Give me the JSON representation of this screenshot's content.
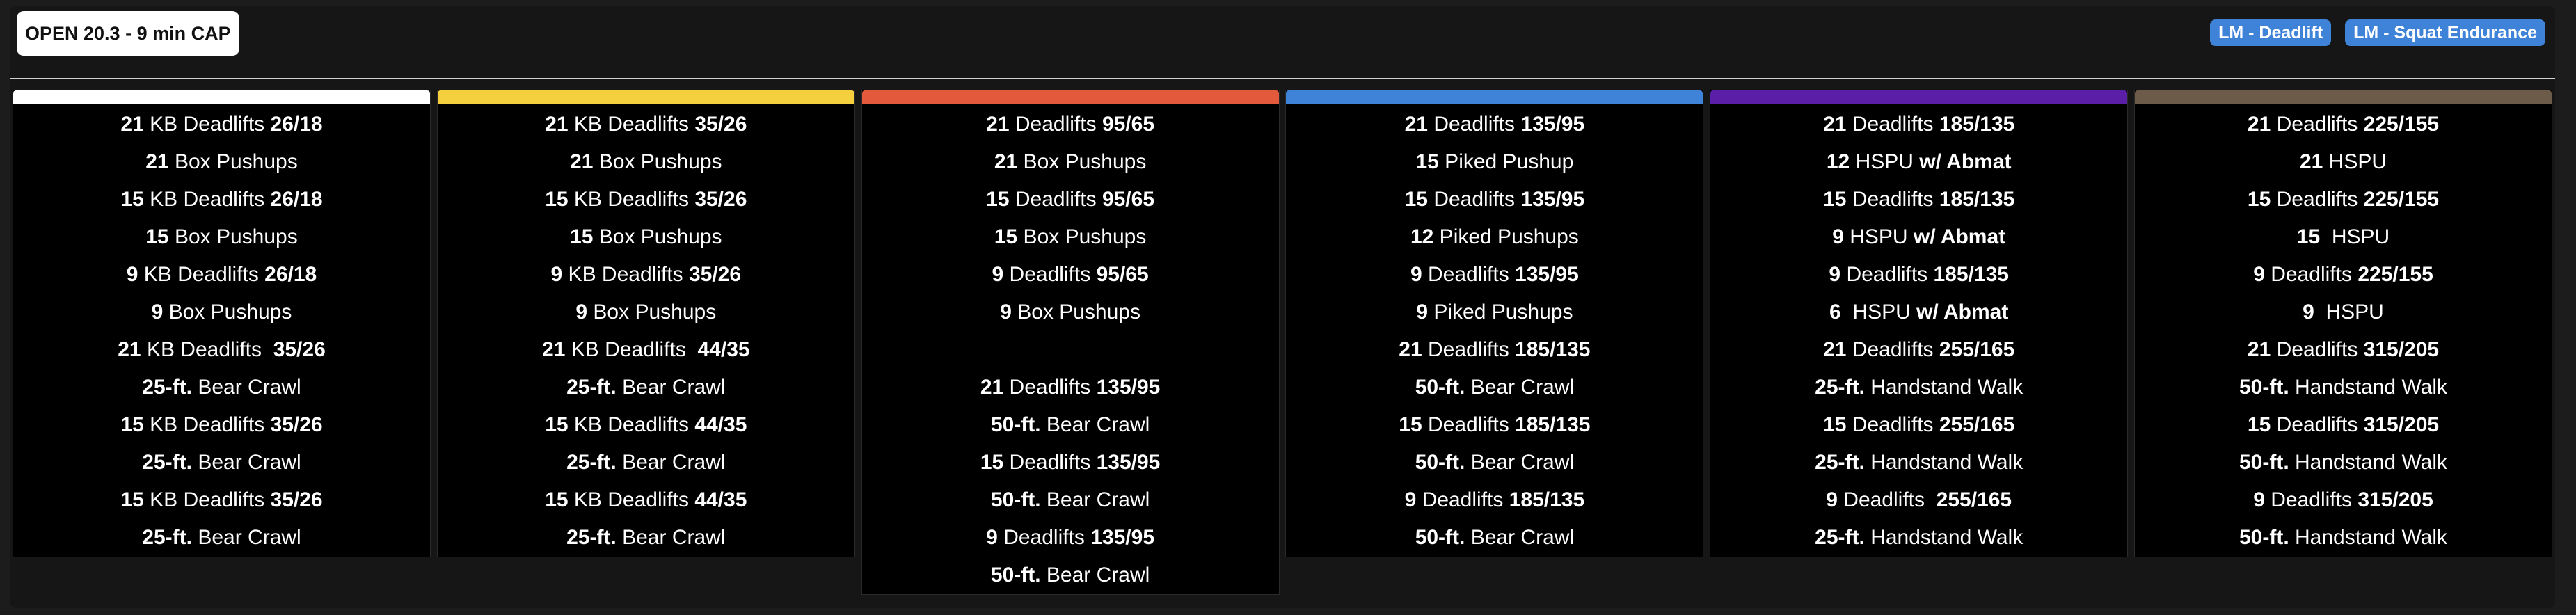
{
  "header": {
    "title": "OPEN 20.3 - 9 min CAP",
    "badges": [
      "LM - Deadlift",
      "LM - Squat Endurance"
    ]
  },
  "colors": {
    "page_bg": "#1c1c1c",
    "panel_bg": "#161616",
    "column_bg": "#000000",
    "badge_bg": "#3f83d9",
    "level_colors": [
      "#ffffff",
      "#f4d03f",
      "#e2593b",
      "#3f83d9",
      "#5a1fa6",
      "#6d5b49"
    ]
  },
  "columns": [
    {
      "color": "#ffffff",
      "rows": [
        {
          "num": "21",
          "text": " KB Deadlifts ",
          "weight": "26/18"
        },
        {
          "num": "21",
          "text": " Box Pushups",
          "weight": ""
        },
        {
          "num": "15",
          "text": " KB Deadlifts ",
          "weight": "26/18"
        },
        {
          "num": "15",
          "text": " Box Pushups",
          "weight": ""
        },
        {
          "num": "9",
          "text": " KB Deadlifts ",
          "weight": "26/18"
        },
        {
          "num": "9",
          "text": " Box Pushups",
          "weight": ""
        },
        {
          "num": "21",
          "text": " KB Deadlifts  ",
          "weight": "35/26"
        },
        {
          "num": "25-ft.",
          "text": " Bear Crawl",
          "weight": ""
        },
        {
          "num": "15",
          "text": " KB Deadlifts ",
          "weight": "35/26"
        },
        {
          "num": "25-ft.",
          "text": " Bear Crawl",
          "weight": ""
        },
        {
          "num": "15",
          "text": " KB Deadlifts ",
          "weight": "35/26"
        },
        {
          "num": "25-ft.",
          "text": " Bear Crawl",
          "weight": ""
        }
      ]
    },
    {
      "color": "#f4d03f",
      "rows": [
        {
          "num": "21",
          "text": " KB Deadlifts ",
          "weight": "35/26"
        },
        {
          "num": "21",
          "text": " Box Pushups",
          "weight": ""
        },
        {
          "num": "15",
          "text": " KB Deadlifts ",
          "weight": "35/26"
        },
        {
          "num": "15",
          "text": " Box Pushups",
          "weight": ""
        },
        {
          "num": "9",
          "text": " KB Deadlifts ",
          "weight": "35/26"
        },
        {
          "num": "9",
          "text": " Box Pushups",
          "weight": ""
        },
        {
          "num": "21",
          "text": " KB Deadlifts  ",
          "weight": "44/35"
        },
        {
          "num": "25-ft.",
          "text": " Bear Crawl",
          "weight": ""
        },
        {
          "num": "15",
          "text": " KB Deadlifts ",
          "weight": "44/35"
        },
        {
          "num": "25-ft.",
          "text": " Bear Crawl",
          "weight": ""
        },
        {
          "num": "15",
          "text": " KB Deadlifts ",
          "weight": "44/35"
        },
        {
          "num": "25-ft.",
          "text": " Bear Crawl",
          "weight": ""
        }
      ]
    },
    {
      "color": "#e2593b",
      "rows": [
        {
          "num": "21",
          "text": " Deadlifts ",
          "weight": "95/65"
        },
        {
          "num": "21",
          "text": " Box Pushups",
          "weight": ""
        },
        {
          "num": "15",
          "text": " Deadlifts ",
          "weight": "95/65"
        },
        {
          "num": "15",
          "text": " Box Pushups",
          "weight": ""
        },
        {
          "num": "9",
          "text": " Deadlifts ",
          "weight": "95/65"
        },
        {
          "num": "9",
          "text": " Box Pushups",
          "weight": ""
        },
        {
          "num": "",
          "text": "",
          "weight": ""
        },
        {
          "num": "21",
          "text": " Deadlifts ",
          "weight": "135/95"
        },
        {
          "num": "50-ft.",
          "text": " Bear Crawl",
          "weight": ""
        },
        {
          "num": "15",
          "text": " Deadlifts ",
          "weight": "135/95"
        },
        {
          "num": "50-ft.",
          "text": " Bear Crawl",
          "weight": ""
        },
        {
          "num": "9",
          "text": " Deadlifts ",
          "weight": "135/95"
        },
        {
          "num": "50-ft.",
          "text": " Bear Crawl",
          "weight": ""
        }
      ]
    },
    {
      "color": "#3f83d9",
      "rows": [
        {
          "num": "21",
          "text": " Deadlifts ",
          "weight": "135/95"
        },
        {
          "num": "15",
          "text": " Piked Pushup",
          "weight": ""
        },
        {
          "num": "15",
          "text": " Deadlifts ",
          "weight": "135/95"
        },
        {
          "num": "12",
          "text": " Piked Pushups",
          "weight": ""
        },
        {
          "num": "9",
          "text": " Deadlifts ",
          "weight": "135/95"
        },
        {
          "num": "9",
          "text": " Piked Pushups",
          "weight": ""
        },
        {
          "num": "21",
          "text": " Deadlifts ",
          "weight": "185/135"
        },
        {
          "num": "50-ft.",
          "text": " Bear Crawl",
          "weight": ""
        },
        {
          "num": "15",
          "text": " Deadlifts ",
          "weight": "185/135"
        },
        {
          "num": "50-ft.",
          "text": " Bear Crawl",
          "weight": ""
        },
        {
          "num": "9",
          "text": " Deadlifts ",
          "weight": "185/135"
        },
        {
          "num": "50-ft.",
          "text": " Bear Crawl",
          "weight": ""
        }
      ]
    },
    {
      "color": "#5a1fa6",
      "rows": [
        {
          "num": "21",
          "text": " Deadlifts ",
          "weight": "185/135"
        },
        {
          "num": "12",
          "text": " HSPU ",
          "weight": "w/ Abmat"
        },
        {
          "num": "15",
          "text": " Deadlifts ",
          "weight": "185/135"
        },
        {
          "num": "9",
          "text": " HSPU ",
          "weight": "w/ Abmat"
        },
        {
          "num": "9",
          "text": " Deadlifts ",
          "weight": "185/135"
        },
        {
          "num": "6",
          "text": "  HSPU ",
          "weight": "w/ Abmat"
        },
        {
          "num": "21",
          "text": " Deadlifts ",
          "weight": "255/165"
        },
        {
          "num": "25-ft.",
          "text": " Handstand Walk",
          "weight": ""
        },
        {
          "num": "15",
          "text": " Deadlifts ",
          "weight": "255/165"
        },
        {
          "num": "25-ft.",
          "text": " Handstand Walk",
          "weight": ""
        },
        {
          "num": "9",
          "text": " Deadlifts  ",
          "weight": "255/165"
        },
        {
          "num": "25-ft.",
          "text": " Handstand Walk",
          "weight": ""
        }
      ]
    },
    {
      "color": "#6d5b49",
      "rows": [
        {
          "num": "21",
          "text": " Deadlifts ",
          "weight": "225/155"
        },
        {
          "num": "21",
          "text": " HSPU",
          "weight": ""
        },
        {
          "num": "15",
          "text": " Deadlifts ",
          "weight": "225/155"
        },
        {
          "num": "15",
          "text": "  HSPU",
          "weight": ""
        },
        {
          "num": "9",
          "text": " Deadlifts ",
          "weight": "225/155"
        },
        {
          "num": "9",
          "text": "  HSPU",
          "weight": ""
        },
        {
          "num": "21",
          "text": " Deadlifts ",
          "weight": "315/205"
        },
        {
          "num": "50-ft.",
          "text": " Handstand Walk",
          "weight": ""
        },
        {
          "num": "15",
          "text": " Deadlifts ",
          "weight": "315/205"
        },
        {
          "num": "50-ft.",
          "text": " Handstand Walk",
          "weight": ""
        },
        {
          "num": "9",
          "text": " Deadlifts ",
          "weight": "315/205"
        },
        {
          "num": "50-ft.",
          "text": " Handstand Walk",
          "weight": ""
        }
      ]
    }
  ]
}
